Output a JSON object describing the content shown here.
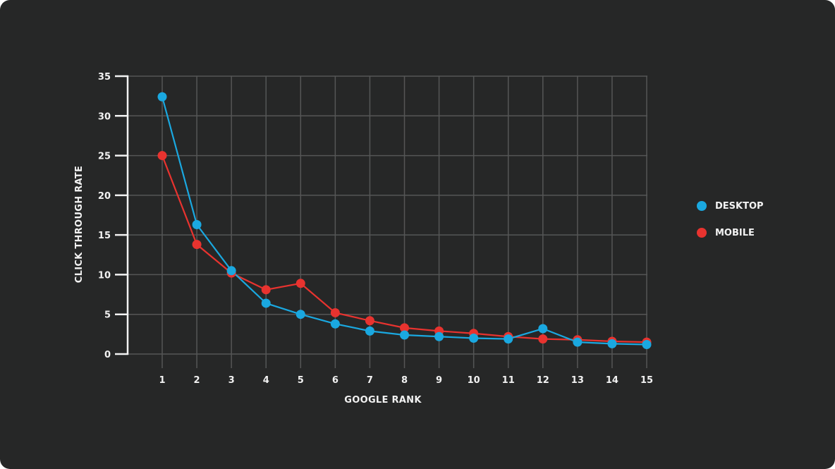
{
  "chart_data": {
    "type": "line",
    "title": "",
    "xlabel": "GOOGLE RANK",
    "ylabel": "CLICK THROUGH RATE",
    "x": [
      1,
      2,
      3,
      4,
      5,
      6,
      7,
      8,
      9,
      10,
      11,
      12,
      13,
      14,
      15
    ],
    "categories": [
      "1",
      "2",
      "3",
      "4",
      "5",
      "6",
      "7",
      "8",
      "9",
      "10",
      "11",
      "12",
      "13",
      "14",
      "15"
    ],
    "yticks": [
      0,
      5,
      10,
      15,
      20,
      25,
      30,
      35
    ],
    "ylim": [
      0,
      35
    ],
    "grid": true,
    "legend_position": "right",
    "series": [
      {
        "name": "DESKTOP",
        "color": "#1aa8e0",
        "values": [
          32.4,
          16.3,
          10.5,
          6.4,
          5.0,
          3.8,
          2.9,
          2.4,
          2.2,
          2.0,
          1.9,
          3.2,
          1.5,
          1.3,
          1.2
        ]
      },
      {
        "name": "MOBILE",
        "color": "#e8332f",
        "values": [
          25.0,
          13.8,
          10.2,
          8.1,
          8.9,
          5.2,
          4.2,
          3.3,
          2.9,
          2.6,
          2.2,
          1.9,
          1.8,
          1.6,
          1.5
        ]
      }
    ]
  },
  "legend": [
    {
      "label": "DESKTOP",
      "color": "#1aa8e0"
    },
    {
      "label": "MOBILE",
      "color": "#e8332f"
    }
  ]
}
